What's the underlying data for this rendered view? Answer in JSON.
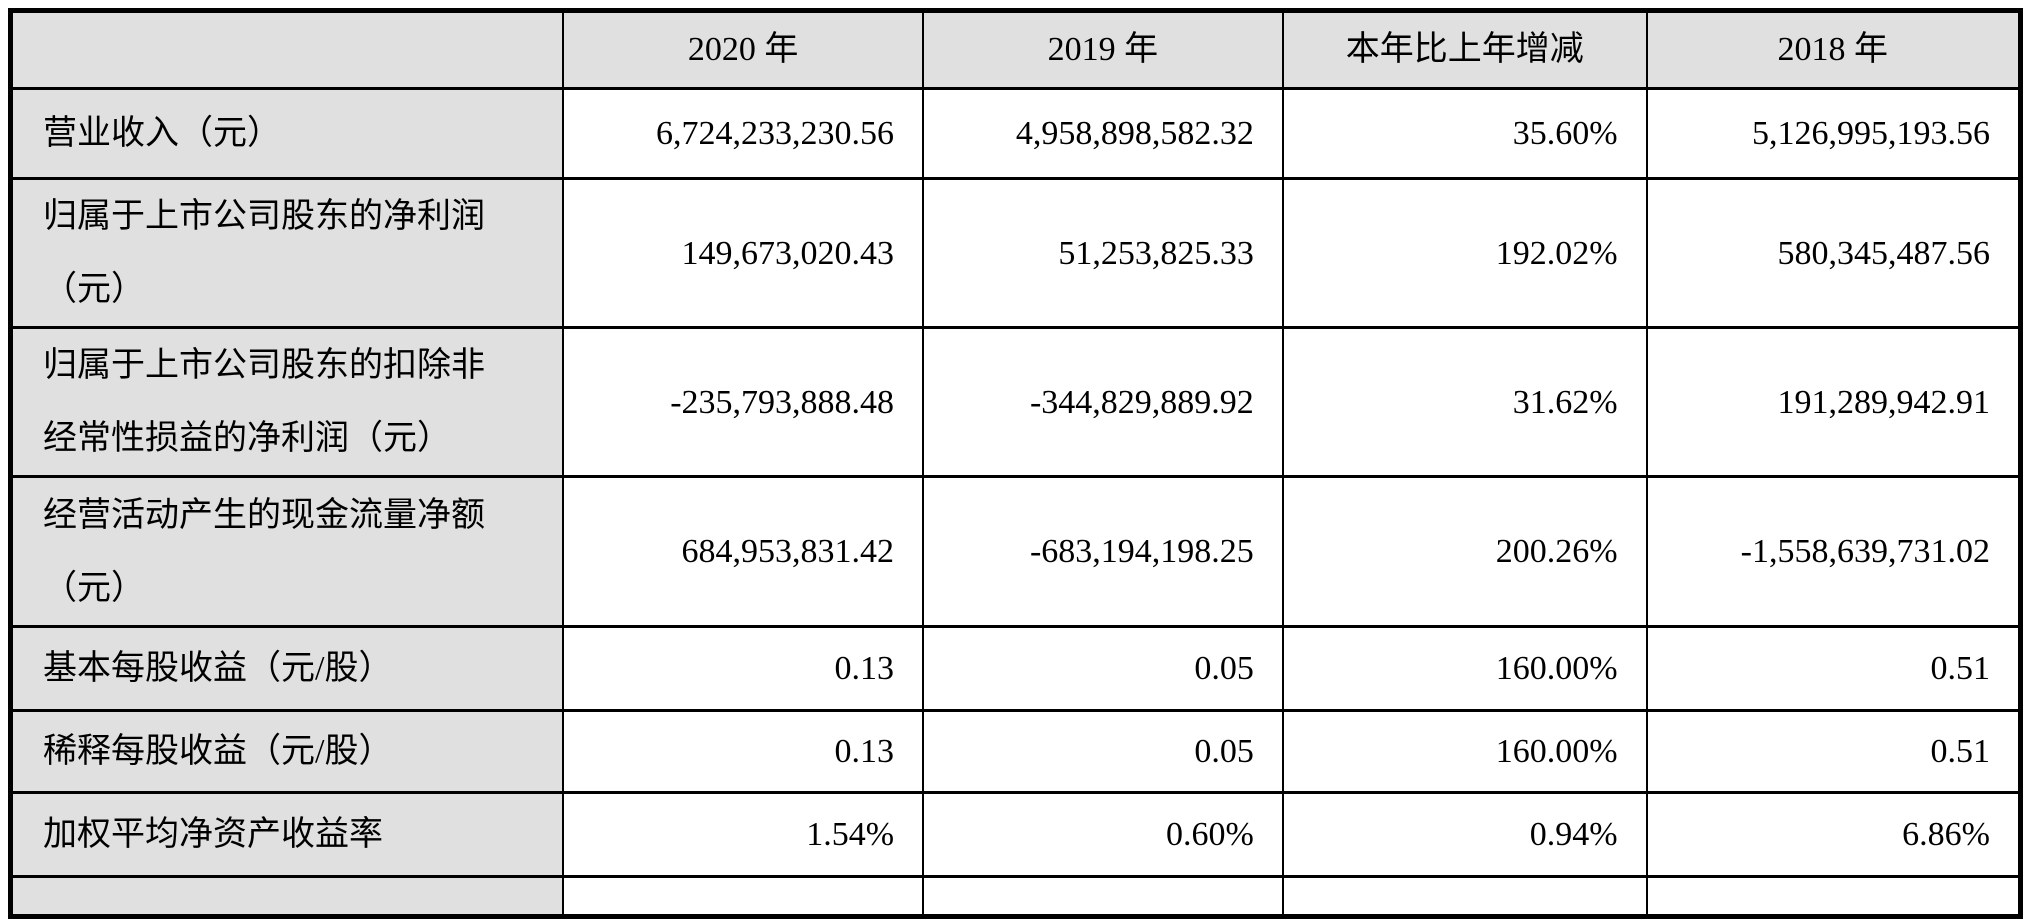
{
  "colors": {
    "header_background": "#e0e0e0",
    "label_column_background": "#e0e0e0",
    "body_background": "#ffffff",
    "border": "#000000",
    "text": "#000000"
  },
  "table": {
    "columns": {
      "label": "",
      "year_2020": "2020 年",
      "year_2019": "2019 年",
      "change": "本年比上年增减",
      "year_2018": "2018 年"
    },
    "rows": [
      {
        "label": "营业收入（元）",
        "cells": [
          "6,724,233,230.56",
          "4,958,898,582.32",
          "35.60%",
          "5,126,995,193.56"
        ]
      },
      {
        "label": "归属于上市公司股东的净利润（元）",
        "cells": [
          "149,673,020.43",
          "51,253,825.33",
          "192.02%",
          "580,345,487.56"
        ]
      },
      {
        "label": "归属于上市公司股东的扣除非经常性损益的净利润（元）",
        "cells": [
          "-235,793,888.48",
          "-344,829,889.92",
          "31.62%",
          "191,289,942.91"
        ]
      },
      {
        "label": "经营活动产生的现金流量净额（元）",
        "cells": [
          "684,953,831.42",
          "-683,194,198.25",
          "200.26%",
          "-1,558,639,731.02"
        ]
      },
      {
        "label": "基本每股收益（元/股）",
        "cells": [
          "0.13",
          "0.05",
          "160.00%",
          "0.51"
        ]
      },
      {
        "label": "稀释每股收益（元/股）",
        "cells": [
          "0.13",
          "0.05",
          "160.00%",
          "0.51"
        ]
      },
      {
        "label": "加权平均净资产收益率",
        "cells": [
          "1.54%",
          "0.60%",
          "0.94%",
          "6.86%"
        ]
      },
      {
        "label": "",
        "cells": [
          "",
          "",
          "",
          ""
        ]
      }
    ]
  }
}
